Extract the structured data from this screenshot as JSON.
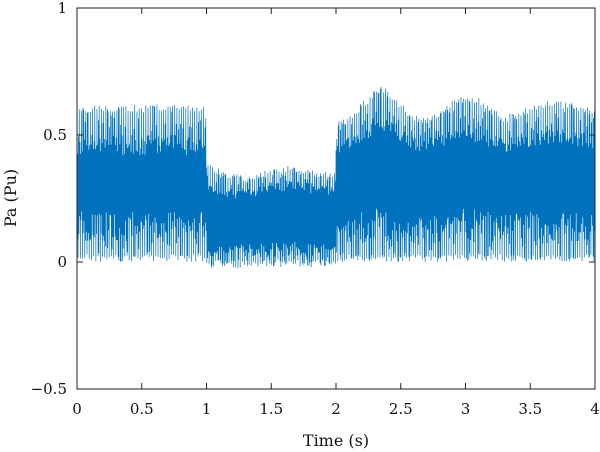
{
  "chart_data": {
    "type": "line",
    "title": "",
    "xlabel": "Time (s)",
    "ylabel": "Pa (Pu)",
    "xlim": [
      0,
      4
    ],
    "ylim": [
      -0.5,
      1
    ],
    "x_ticks": [
      {
        "value": 0,
        "label": "0"
      },
      {
        "value": 0.5,
        "label": "0.5"
      },
      {
        "value": 1,
        "label": "1"
      },
      {
        "value": 1.5,
        "label": "1.5"
      },
      {
        "value": 2,
        "label": "2"
      },
      {
        "value": 2.5,
        "label": "2.5"
      },
      {
        "value": 3,
        "label": "3"
      },
      {
        "value": 3.5,
        "label": "3.5"
      },
      {
        "value": 4,
        "label": "4"
      }
    ],
    "y_ticks": [
      {
        "value": -0.5,
        "label": "−0.5"
      },
      {
        "value": 0,
        "label": "0"
      },
      {
        "value": 0.5,
        "label": "0.5"
      },
      {
        "value": 1,
        "label": "1"
      }
    ],
    "grid": false,
    "legend": "none",
    "color": "#0072BD",
    "series": [
      {
        "x": [
          0,
          0.2,
          0.4,
          0.6,
          0.8,
          0.99,
          1.01,
          1.1,
          1.2,
          1.3,
          1.4,
          1.5,
          1.6,
          1.7,
          1.8,
          1.9,
          1.99,
          2.01,
          2.1,
          2.2,
          2.3,
          2.35,
          2.4,
          2.5,
          2.6,
          2.7,
          2.8,
          2.9,
          3.0,
          3.1,
          3.2,
          3.3,
          3.4,
          3.5,
          3.6,
          3.7,
          3.8,
          3.9,
          4.0
        ],
        "upper": [
          0.62,
          0.62,
          0.62,
          0.62,
          0.62,
          0.62,
          0.4,
          0.37,
          0.35,
          0.34,
          0.35,
          0.37,
          0.38,
          0.38,
          0.37,
          0.36,
          0.35,
          0.55,
          0.58,
          0.63,
          0.68,
          0.69,
          0.68,
          0.63,
          0.58,
          0.57,
          0.6,
          0.64,
          0.66,
          0.65,
          0.61,
          0.58,
          0.59,
          0.62,
          0.63,
          0.64,
          0.63,
          0.62,
          0.6
        ],
        "lower": [
          0.0,
          0.0,
          0.0,
          0.0,
          0.0,
          0.0,
          -0.03,
          -0.02,
          -0.03,
          -0.02,
          -0.02,
          -0.02,
          -0.02,
          -0.02,
          -0.02,
          -0.02,
          -0.02,
          0.0,
          0.0,
          0.0,
          0.0,
          0.0,
          0.0,
          0.0,
          0.0,
          0.0,
          0.0,
          0.0,
          0.0,
          0.0,
          0.0,
          0.0,
          0.0,
          0.0,
          0.0,
          0.0,
          0.0,
          0.0,
          0.0
        ],
        "core_upper": [
          0.42,
          0.42,
          0.42,
          0.42,
          0.42,
          0.42,
          0.28,
          0.26,
          0.25,
          0.25,
          0.26,
          0.27,
          0.28,
          0.28,
          0.27,
          0.27,
          0.26,
          0.42,
          0.44,
          0.47,
          0.5,
          0.5,
          0.49,
          0.46,
          0.43,
          0.43,
          0.45,
          0.47,
          0.48,
          0.47,
          0.45,
          0.43,
          0.44,
          0.45,
          0.46,
          0.46,
          0.46,
          0.45,
          0.44
        ],
        "core_lower": [
          0.2,
          0.2,
          0.2,
          0.2,
          0.2,
          0.2,
          0.08,
          0.07,
          0.07,
          0.07,
          0.07,
          0.08,
          0.08,
          0.08,
          0.08,
          0.08,
          0.08,
          0.18,
          0.19,
          0.2,
          0.22,
          0.22,
          0.21,
          0.2,
          0.19,
          0.19,
          0.2,
          0.21,
          0.21,
          0.21,
          0.2,
          0.19,
          0.2,
          0.2,
          0.21,
          0.21,
          0.21,
          0.2,
          0.2
        ]
      }
    ]
  }
}
